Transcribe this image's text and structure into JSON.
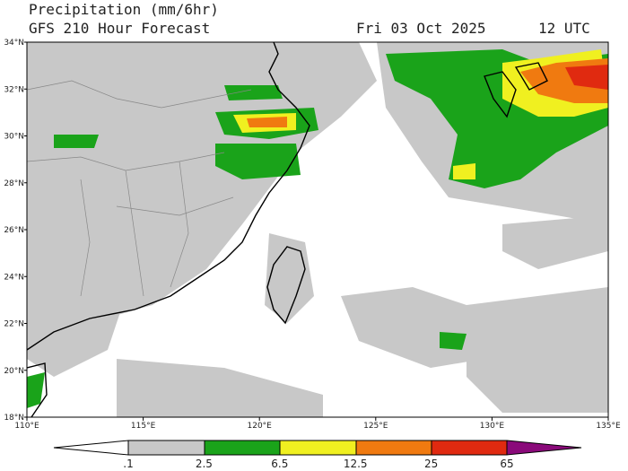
{
  "header": {
    "title": "Precipitation (mm/6hr)",
    "subtitle": "GFS 210 Hour Forecast",
    "date": "Fri 03 Oct 2025",
    "time": "12 UTC"
  },
  "map": {
    "lat_labels": [
      "34°N",
      "32°N",
      "30°N",
      "28°N",
      "26°N",
      "24°N",
      "22°N",
      "20°N",
      "18°N"
    ],
    "lon_labels": [
      "110°E",
      "115°E",
      "120°E",
      "125°E",
      "130°E",
      "135°E"
    ]
  },
  "colorbar": {
    "labels": [
      ".1",
      "2.5",
      "6.5",
      "12.5",
      "25",
      "65"
    ]
  }
}
